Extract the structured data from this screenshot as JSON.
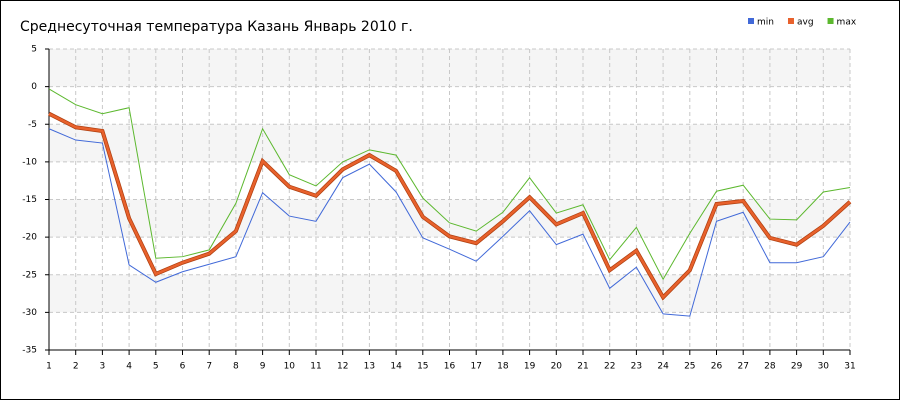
{
  "chart_data": {
    "type": "line",
    "title": "Среднесуточная температура Казань  Январь 2010 г.",
    "x": [
      1,
      2,
      3,
      4,
      5,
      6,
      7,
      8,
      9,
      10,
      11,
      12,
      13,
      14,
      15,
      16,
      17,
      18,
      19,
      20,
      21,
      22,
      23,
      24,
      25,
      26,
      27,
      28,
      29,
      30,
      31
    ],
    "xlim": [
      1,
      31
    ],
    "xticks": [
      1,
      2,
      3,
      4,
      5,
      6,
      7,
      8,
      9,
      10,
      11,
      12,
      13,
      14,
      15,
      16,
      17,
      18,
      19,
      20,
      21,
      22,
      23,
      24,
      25,
      26,
      27,
      28,
      29,
      30,
      31
    ],
    "ylim": [
      -35,
      5
    ],
    "yticks": [
      -35,
      -30,
      -25,
      -20,
      -15,
      -10,
      -5,
      0,
      5
    ],
    "grid": true,
    "legend": "top-right",
    "series": [
      {
        "name": "min",
        "color": "#4169d8",
        "values": [
          -5.6,
          -7.1,
          -7.5,
          -23.7,
          -26.0,
          -24.6,
          -23.6,
          -22.6,
          -14.1,
          -17.2,
          -17.9,
          -12.1,
          -10.3,
          -14.0,
          -20.1,
          -21.6,
          -23.2,
          -19.9,
          -16.5,
          -21.0,
          -19.6,
          -26.8,
          -24.0,
          -30.2,
          -30.5,
          -17.9,
          -16.7,
          -23.4,
          -23.4,
          -22.6,
          -18.0
        ]
      },
      {
        "name": "avg",
        "color": "#e8612c",
        "values": [
          -3.6,
          -5.4,
          -5.9,
          -17.5,
          -24.9,
          -23.4,
          -22.2,
          -19.2,
          -9.9,
          -13.3,
          -14.5,
          -11.0,
          -9.1,
          -11.2,
          -17.3,
          -19.9,
          -20.8,
          -17.9,
          -14.7,
          -18.3,
          -16.8,
          -24.4,
          -21.8,
          -28.0,
          -24.4,
          -15.6,
          -15.2,
          -20.1,
          -21.0,
          -18.5,
          -15.3
        ]
      },
      {
        "name": "max",
        "color": "#5cb82e",
        "values": [
          -0.3,
          -2.4,
          -3.6,
          -2.8,
          -22.8,
          -22.6,
          -21.7,
          -15.5,
          -5.6,
          -11.7,
          -13.2,
          -10.0,
          -8.4,
          -9.1,
          -14.8,
          -18.1,
          -19.2,
          -16.7,
          -12.1,
          -16.8,
          -15.7,
          -23.0,
          -18.7,
          -25.6,
          -19.5,
          -13.9,
          -13.1,
          -17.6,
          -17.7,
          -14.0,
          -13.4
        ]
      }
    ]
  }
}
